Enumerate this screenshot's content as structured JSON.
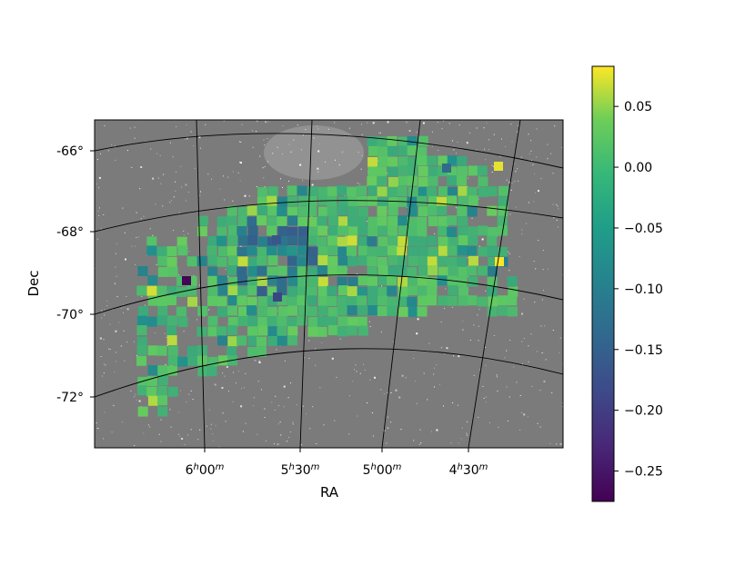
{
  "chart_data": {
    "type": "heatmap",
    "xlabel": "RA",
    "ylabel": "Dec",
    "x_ticks": [
      {
        "h": "6",
        "m": "00"
      },
      {
        "h": "5",
        "m": "30"
      },
      {
        "h": "5",
        "m": "00"
      },
      {
        "h": "4",
        "m": "30"
      }
    ],
    "y_ticks": [
      "-66°",
      "-68°",
      "-70°",
      "-72°"
    ],
    "colorbar": {
      "colormap": "viridis",
      "range": [
        -0.275,
        0.083
      ],
      "ticks": [
        "0.05",
        "0.00",
        "−0.05",
        "−0.10",
        "−0.15",
        "−0.20",
        "−0.25"
      ],
      "tick_values": [
        0.05,
        0.0,
        -0.05,
        -0.1,
        -0.15,
        -0.2,
        -0.25
      ]
    },
    "background": "grayscale star-field image",
    "grid": true,
    "colors": {
      "min": "#440154",
      "mid": "#21918c",
      "max": "#fde725"
    }
  }
}
